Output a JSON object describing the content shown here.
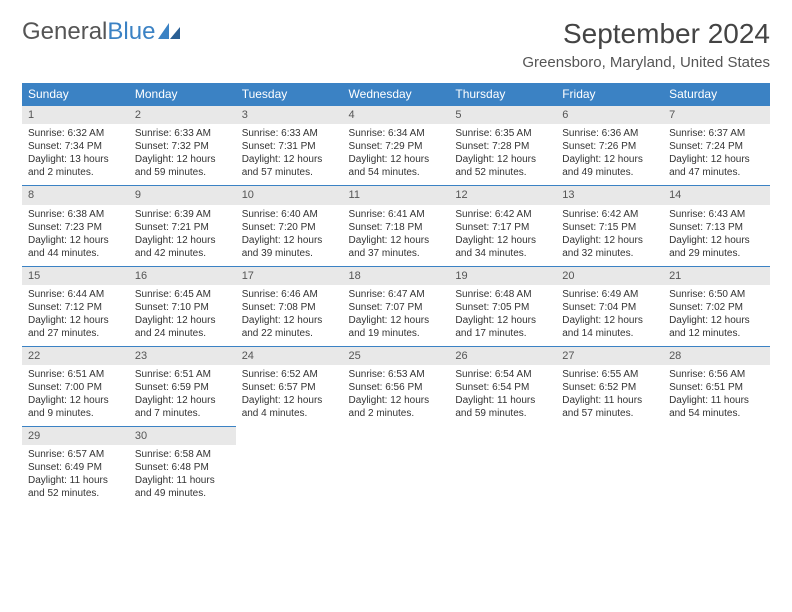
{
  "brand": {
    "part1": "General",
    "part2": "Blue"
  },
  "title": "September 2024",
  "location": "Greensboro, Maryland, United States",
  "colors": {
    "header_bg": "#3b82c4",
    "header_text": "#ffffff",
    "daynum_bg": "#e8e8e8",
    "text": "#333333",
    "row_border": "#3b82c4"
  },
  "typography": {
    "title_fontsize": 28,
    "location_fontsize": 15,
    "th_fontsize": 12,
    "cell_fontsize": 10
  },
  "layout": {
    "columns": 7,
    "rows": 5
  },
  "weekdays": [
    "Sunday",
    "Monday",
    "Tuesday",
    "Wednesday",
    "Thursday",
    "Friday",
    "Saturday"
  ],
  "days": [
    {
      "n": "1",
      "sunrise": "6:32 AM",
      "sunset": "7:34 PM",
      "daylight": "13 hours and 2 minutes."
    },
    {
      "n": "2",
      "sunrise": "6:33 AM",
      "sunset": "7:32 PM",
      "daylight": "12 hours and 59 minutes."
    },
    {
      "n": "3",
      "sunrise": "6:33 AM",
      "sunset": "7:31 PM",
      "daylight": "12 hours and 57 minutes."
    },
    {
      "n": "4",
      "sunrise": "6:34 AM",
      "sunset": "7:29 PM",
      "daylight": "12 hours and 54 minutes."
    },
    {
      "n": "5",
      "sunrise": "6:35 AM",
      "sunset": "7:28 PM",
      "daylight": "12 hours and 52 minutes."
    },
    {
      "n": "6",
      "sunrise": "6:36 AM",
      "sunset": "7:26 PM",
      "daylight": "12 hours and 49 minutes."
    },
    {
      "n": "7",
      "sunrise": "6:37 AM",
      "sunset": "7:24 PM",
      "daylight": "12 hours and 47 minutes."
    },
    {
      "n": "8",
      "sunrise": "6:38 AM",
      "sunset": "7:23 PM",
      "daylight": "12 hours and 44 minutes."
    },
    {
      "n": "9",
      "sunrise": "6:39 AM",
      "sunset": "7:21 PM",
      "daylight": "12 hours and 42 minutes."
    },
    {
      "n": "10",
      "sunrise": "6:40 AM",
      "sunset": "7:20 PM",
      "daylight": "12 hours and 39 minutes."
    },
    {
      "n": "11",
      "sunrise": "6:41 AM",
      "sunset": "7:18 PM",
      "daylight": "12 hours and 37 minutes."
    },
    {
      "n": "12",
      "sunrise": "6:42 AM",
      "sunset": "7:17 PM",
      "daylight": "12 hours and 34 minutes."
    },
    {
      "n": "13",
      "sunrise": "6:42 AM",
      "sunset": "7:15 PM",
      "daylight": "12 hours and 32 minutes."
    },
    {
      "n": "14",
      "sunrise": "6:43 AM",
      "sunset": "7:13 PM",
      "daylight": "12 hours and 29 minutes."
    },
    {
      "n": "15",
      "sunrise": "6:44 AM",
      "sunset": "7:12 PM",
      "daylight": "12 hours and 27 minutes."
    },
    {
      "n": "16",
      "sunrise": "6:45 AM",
      "sunset": "7:10 PM",
      "daylight": "12 hours and 24 minutes."
    },
    {
      "n": "17",
      "sunrise": "6:46 AM",
      "sunset": "7:08 PM",
      "daylight": "12 hours and 22 minutes."
    },
    {
      "n": "18",
      "sunrise": "6:47 AM",
      "sunset": "7:07 PM",
      "daylight": "12 hours and 19 minutes."
    },
    {
      "n": "19",
      "sunrise": "6:48 AM",
      "sunset": "7:05 PM",
      "daylight": "12 hours and 17 minutes."
    },
    {
      "n": "20",
      "sunrise": "6:49 AM",
      "sunset": "7:04 PM",
      "daylight": "12 hours and 14 minutes."
    },
    {
      "n": "21",
      "sunrise": "6:50 AM",
      "sunset": "7:02 PM",
      "daylight": "12 hours and 12 minutes."
    },
    {
      "n": "22",
      "sunrise": "6:51 AM",
      "sunset": "7:00 PM",
      "daylight": "12 hours and 9 minutes."
    },
    {
      "n": "23",
      "sunrise": "6:51 AM",
      "sunset": "6:59 PM",
      "daylight": "12 hours and 7 minutes."
    },
    {
      "n": "24",
      "sunrise": "6:52 AM",
      "sunset": "6:57 PM",
      "daylight": "12 hours and 4 minutes."
    },
    {
      "n": "25",
      "sunrise": "6:53 AM",
      "sunset": "6:56 PM",
      "daylight": "12 hours and 2 minutes."
    },
    {
      "n": "26",
      "sunrise": "6:54 AM",
      "sunset": "6:54 PM",
      "daylight": "11 hours and 59 minutes."
    },
    {
      "n": "27",
      "sunrise": "6:55 AM",
      "sunset": "6:52 PM",
      "daylight": "11 hours and 57 minutes."
    },
    {
      "n": "28",
      "sunrise": "6:56 AM",
      "sunset": "6:51 PM",
      "daylight": "11 hours and 54 minutes."
    },
    {
      "n": "29",
      "sunrise": "6:57 AM",
      "sunset": "6:49 PM",
      "daylight": "11 hours and 52 minutes."
    },
    {
      "n": "30",
      "sunrise": "6:58 AM",
      "sunset": "6:48 PM",
      "daylight": "11 hours and 49 minutes."
    }
  ],
  "labels": {
    "sunrise": "Sunrise:",
    "sunset": "Sunset:",
    "daylight": "Daylight:"
  }
}
